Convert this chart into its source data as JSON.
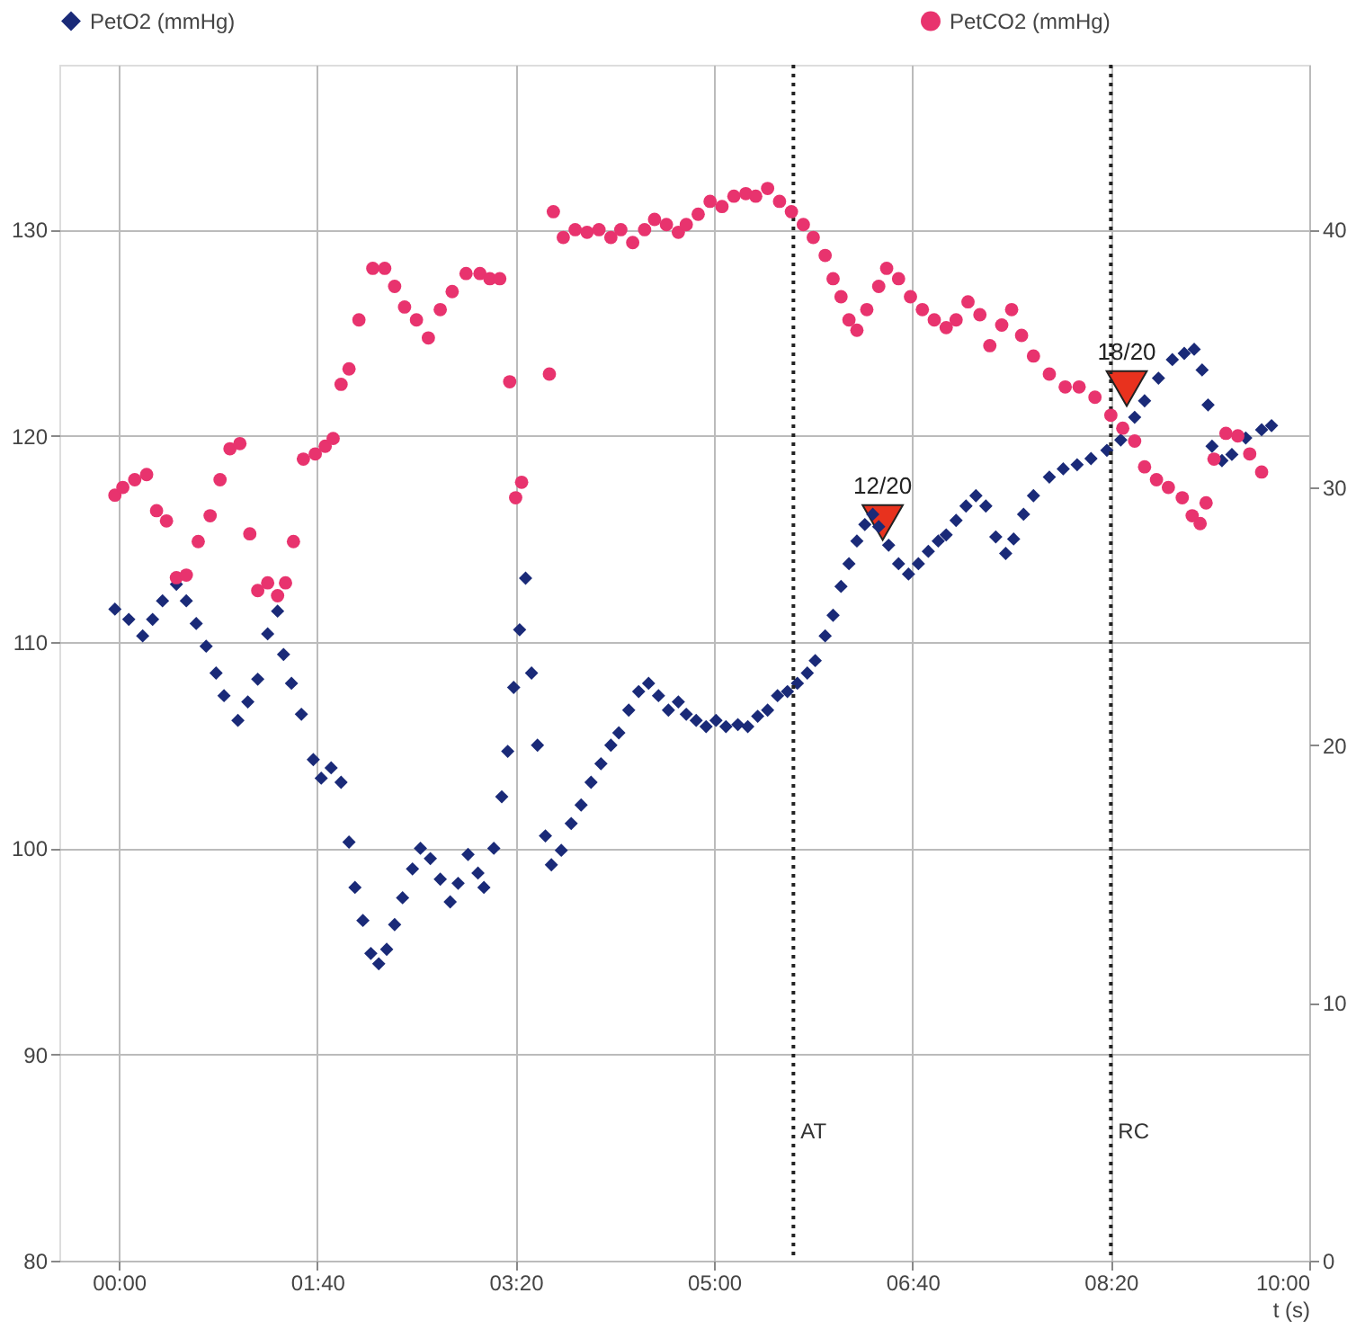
{
  "chart_data": {
    "type": "scatter",
    "xlabel": "t (s)",
    "xlim": [
      -30,
      600
    ],
    "xticks": [
      {
        "value": 0,
        "label": "00:00"
      },
      {
        "value": 100,
        "label": "01:40"
      },
      {
        "value": 200,
        "label": "03:20"
      },
      {
        "value": 300,
        "label": "05:00"
      },
      {
        "value": 400,
        "label": "06:40"
      },
      {
        "value": 500,
        "label": "08:20"
      },
      {
        "value": 600,
        "label": "10:00"
      }
    ],
    "ylim": [
      80,
      138
    ],
    "yticks": [
      80,
      90,
      100,
      110,
      120,
      130
    ],
    "y2lim": [
      0,
      46.4
    ],
    "y2ticks": [
      0,
      10,
      20,
      30,
      40
    ],
    "grid": true,
    "legend": "top",
    "series": [
      {
        "name": "PetO2 (mmHg)",
        "color": "#1a2a78",
        "marker": "diamond",
        "x": [
          -2,
          5,
          12,
          17,
          22,
          29,
          34,
          39,
          44,
          49,
          53,
          60,
          65,
          70,
          75,
          80,
          83,
          87,
          92,
          98,
          102,
          107,
          112,
          116,
          119,
          123,
          127,
          131,
          135,
          139,
          143,
          148,
          152,
          157,
          162,
          167,
          171,
          176,
          181,
          184,
          189,
          193,
          196,
          199,
          202,
          205,
          208,
          211,
          215,
          218,
          223,
          228,
          233,
          238,
          243,
          248,
          252,
          257,
          262,
          267,
          272,
          277,
          282,
          286,
          291,
          296,
          301,
          306,
          312,
          317,
          322,
          327,
          332,
          337,
          342,
          347,
          351,
          356,
          360,
          364,
          368,
          372,
          376,
          380,
          383,
          388,
          393,
          398,
          403,
          408,
          413,
          417,
          422,
          427,
          432,
          437,
          442,
          447,
          451,
          456,
          461,
          469,
          476,
          483,
          490,
          498,
          505,
          512,
          517,
          524,
          531,
          537,
          542,
          546,
          549,
          551,
          556,
          561,
          568,
          576,
          581
        ],
        "values": [
          111.6,
          111.1,
          110.3,
          111.1,
          112.0,
          112.8,
          112.0,
          110.9,
          109.8,
          108.5,
          107.4,
          106.2,
          107.1,
          108.2,
          110.4,
          111.5,
          109.4,
          108.0,
          106.5,
          104.3,
          103.4,
          103.9,
          103.2,
          100.3,
          98.1,
          96.5,
          94.9,
          94.4,
          95.1,
          96.3,
          97.6,
          99.0,
          100.0,
          99.5,
          98.5,
          97.4,
          98.3,
          99.7,
          98.8,
          98.1,
          100.0,
          102.5,
          104.7,
          107.8,
          110.6,
          113.1,
          108.5,
          105.0,
          100.6,
          99.2,
          99.9,
          101.2,
          102.1,
          103.2,
          104.1,
          105.0,
          105.6,
          106.7,
          107.6,
          108.0,
          107.4,
          106.7,
          107.1,
          106.5,
          106.2,
          105.9,
          106.2,
          105.9,
          106.0,
          105.9,
          106.4,
          106.7,
          107.4,
          107.6,
          108.0,
          108.5,
          109.1,
          110.3,
          111.3,
          112.7,
          113.8,
          114.9,
          115.7,
          116.2,
          115.6,
          114.7,
          113.8,
          113.3,
          113.8,
          114.4,
          114.9,
          115.2,
          115.9,
          116.6,
          117.1,
          116.6,
          115.1,
          114.3,
          115.0,
          116.2,
          117.1,
          118.0,
          118.4,
          118.6,
          118.9,
          119.3,
          119.8,
          120.9,
          121.7,
          122.8,
          123.7,
          124.0,
          124.2,
          123.2,
          121.5,
          119.5,
          118.8,
          119.1,
          119.9,
          120.3,
          120.5
        ]
      },
      {
        "name": "PetCO2 (mmHg)",
        "color": "#e8336e",
        "marker": "circle",
        "axis": "y2",
        "x": [
          -2,
          2,
          8,
          14,
          19,
          24,
          29,
          34,
          40,
          46,
          51,
          56,
          61,
          66,
          70,
          75,
          80,
          84,
          88,
          93,
          99,
          104,
          108,
          112,
          116,
          121,
          128,
          134,
          139,
          144,
          150,
          156,
          162,
          168,
          175,
          182,
          187,
          192,
          197,
          200,
          203,
          217,
          219,
          224,
          230,
          236,
          242,
          248,
          253,
          259,
          265,
          270,
          276,
          282,
          286,
          292,
          298,
          304,
          310,
          316,
          321,
          327,
          333,
          339,
          345,
          350,
          356,
          360,
          364,
          368,
          372,
          377,
          383,
          387,
          393,
          399,
          405,
          411,
          417,
          422,
          428,
          434,
          439,
          445,
          450,
          455,
          461,
          469,
          477,
          484,
          492,
          500,
          506,
          512,
          517,
          523,
          529,
          536,
          541,
          545,
          548,
          552,
          558,
          564,
          570,
          576
        ],
        "values": [
          29.7,
          30.0,
          30.3,
          30.5,
          29.1,
          28.7,
          26.5,
          26.6,
          27.9,
          28.9,
          30.3,
          31.5,
          31.7,
          28.2,
          26.0,
          26.3,
          25.8,
          26.3,
          27.9,
          31.1,
          31.3,
          31.6,
          31.9,
          34.0,
          34.6,
          36.5,
          38.5,
          38.5,
          37.8,
          37.0,
          36.5,
          35.8,
          36.9,
          37.6,
          38.3,
          38.3,
          38.1,
          38.1,
          34.1,
          29.6,
          30.2,
          34.4,
          40.7,
          39.7,
          40.0,
          39.9,
          40.0,
          39.7,
          40.0,
          39.5,
          40.0,
          40.4,
          40.2,
          39.9,
          40.2,
          40.6,
          41.1,
          40.9,
          41.3,
          41.4,
          41.3,
          41.6,
          41.1,
          40.7,
          40.2,
          39.7,
          39.0,
          38.1,
          37.4,
          36.5,
          36.1,
          36.9,
          37.8,
          38.5,
          38.1,
          37.4,
          36.9,
          36.5,
          36.2,
          36.5,
          37.2,
          36.7,
          35.5,
          36.3,
          36.9,
          35.9,
          35.1,
          34.4,
          33.9,
          33.9,
          33.5,
          32.8,
          32.3,
          31.8,
          30.8,
          30.3,
          30.0,
          29.6,
          28.9,
          28.6,
          29.4,
          31.1,
          32.1,
          32.0,
          31.3,
          30.6
        ]
      }
    ],
    "ref_lines": [
      {
        "axis": "x",
        "value": 340,
        "label": "AT",
        "color": "#222222",
        "line_style": "dotted"
      },
      {
        "axis": "x",
        "value": 500,
        "label": "RC",
        "color": "#222222",
        "line_style": "dotted"
      }
    ],
    "annotations": [
      {
        "text": "12/20",
        "x": 385,
        "y": 115.8
      },
      {
        "text": "18/20",
        "x": 508,
        "y": 122.3
      }
    ]
  }
}
